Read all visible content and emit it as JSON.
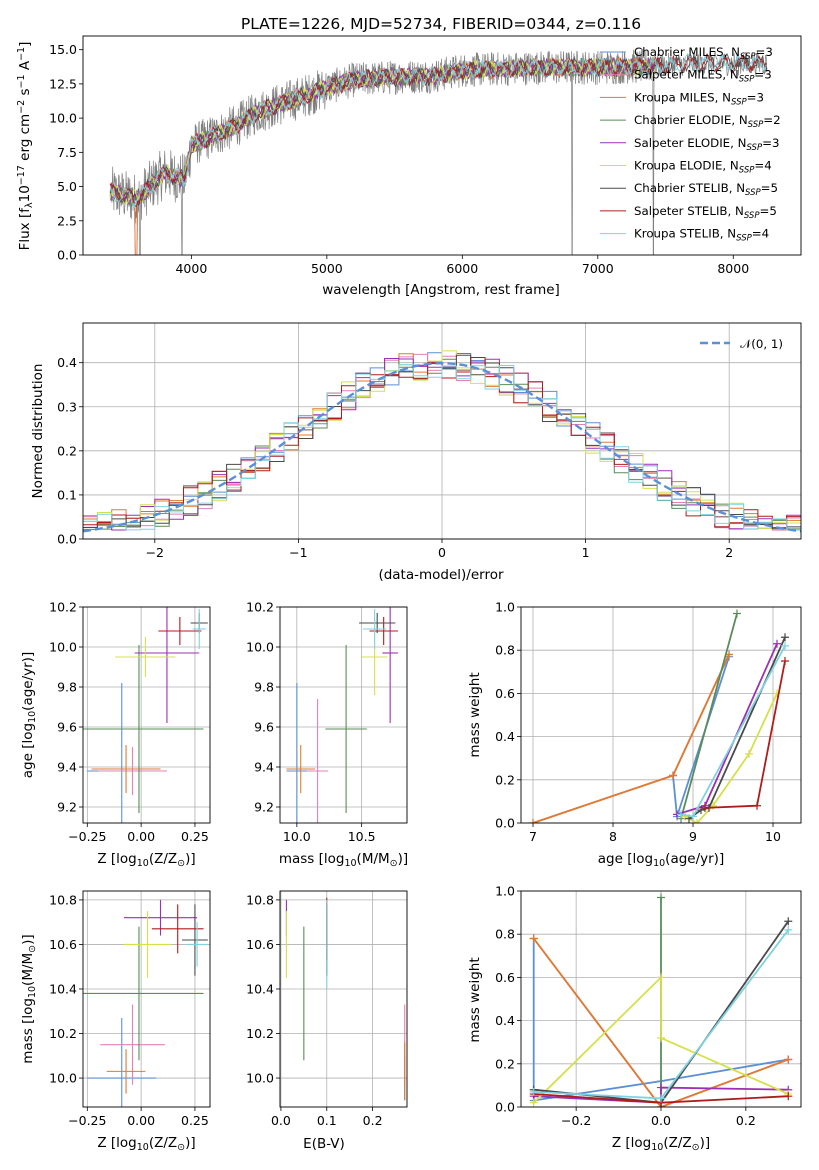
{
  "colors": {
    "data": "#7f7f7f",
    "gauss": "#5b8fd6",
    "grid": "#b0b0b0"
  },
  "models": [
    {
      "label": "Chabrier MILES, N_SSP=3",
      "base": "Chabrier MILES, N",
      "sub": "SSP",
      "tail": "=3",
      "color": "#5b8fd6"
    },
    {
      "label": "Salpeter MILES, N_SSP=3",
      "base": "Salpeter MILES, N",
      "sub": "SSP",
      "tail": "=3",
      "color": "#e67fb8"
    },
    {
      "label": "Kroupa MILES, N_SSP=3",
      "base": "Kroupa MILES, N",
      "sub": "SSP",
      "tail": "=3",
      "color": "#de7b2e"
    },
    {
      "label": "Chabrier ELODIE, N_SSP=2",
      "base": "Chabrier ELODIE, N",
      "sub": "SSP",
      "tail": "=2",
      "color": "#5a8c5a"
    },
    {
      "label": "Salpeter ELODIE, N_SSP=3",
      "base": "Salpeter ELODIE, N",
      "sub": "SSP",
      "tail": "=3",
      "color": "#9b30b5"
    },
    {
      "label": "Kroupa ELODIE, N_SSP=4",
      "base": "Kroupa ELODIE, N",
      "sub": "SSP",
      "tail": "=4",
      "color": "#d6e04a"
    },
    {
      "label": "Chabrier STELIB, N_SSP=5",
      "base": "Chabrier STELIB, N",
      "sub": "SSP",
      "tail": "=5",
      "color": "#4a4a4a"
    },
    {
      "label": "Salpeter STELIB, N_SSP=5",
      "base": "Salpeter STELIB, N",
      "sub": "SSP",
      "tail": "=5",
      "color": "#b01c1c"
    },
    {
      "label": "Kroupa STELIB, N_SSP=4",
      "base": "Kroupa STELIB, N",
      "sub": "SSP",
      "tail": "=4",
      "color": "#7fd3e0"
    }
  ],
  "chart_data": [
    {
      "id": "spectrum",
      "type": "line",
      "title": "PLATE=1226, MJD=52734, FIBERID=0344, z=0.116",
      "xlabel": "wavelength [Angstrom, rest frame]",
      "ylabel_parts": [
        "Flux [f",
        "λ",
        "10",
        "−17",
        " erg cm",
        "−2",
        " s",
        "−1",
        " A",
        "−1",
        "]"
      ],
      "xlim": [
        3200,
        8500
      ],
      "ylim": [
        0,
        16
      ],
      "xticks": [
        4000,
        5000,
        6000,
        7000,
        8000
      ],
      "yticks": [
        0.0,
        2.5,
        5.0,
        7.5,
        10.0,
        12.5,
        15.0
      ],
      "ytick_labels": [
        "0.0",
        "2.5",
        "5.0",
        "7.5",
        "10.0",
        "12.5",
        "15.0"
      ],
      "grid": false,
      "legend": "top-right",
      "continuum": [
        [
          3400,
          4.6
        ],
        [
          3600,
          4.1
        ],
        [
          3800,
          6.0
        ],
        [
          3950,
          5.5
        ],
        [
          4000,
          8.0
        ],
        [
          4300,
          9.3
        ],
        [
          4500,
          10.5
        ],
        [
          4800,
          11.5
        ],
        [
          5000,
          12.2
        ],
        [
          5200,
          12.8
        ],
        [
          5500,
          13.0
        ],
        [
          5800,
          13.1
        ],
        [
          6000,
          13.5
        ],
        [
          6300,
          13.6
        ],
        [
          6600,
          13.7
        ],
        [
          7000,
          13.7
        ],
        [
          7400,
          13.8
        ],
        [
          7700,
          14.0
        ],
        [
          8000,
          14.0
        ],
        [
          8250,
          14.0
        ]
      ],
      "data_range": [
        3410,
        7420
      ],
      "dips": [
        {
          "x": 3620,
          "to": 0
        },
        {
          "x": 3930,
          "to": 0
        },
        {
          "x": 6810,
          "to": 0
        },
        {
          "x": 7410,
          "to": 0
        }
      ]
    },
    {
      "id": "residuals",
      "type": "histogram",
      "xlabel": "(data-model)/error",
      "ylabel": "Normed distribution",
      "xlim": [
        -2.5,
        2.5
      ],
      "ylim": [
        0,
        0.49
      ],
      "xticks": [
        -2,
        -1,
        0,
        1,
        2
      ],
      "xtick_labels": [
        "−2",
        "−1",
        "0",
        "1",
        "2"
      ],
      "yticks": [
        0.0,
        0.1,
        0.2,
        0.3,
        0.4
      ],
      "ytick_labels": [
        "0.0",
        "0.1",
        "0.2",
        "0.3",
        "0.4"
      ],
      "bin_width": 0.1,
      "grid": true,
      "legend": "top-right",
      "gauss_label": "𝒩(0, 1)"
    },
    {
      "id": "age-vs-Z",
      "type": "scatter",
      "xlabel_parts": [
        "Z [log",
        "10",
        "(Z/Z",
        "⊙",
        ")]"
      ],
      "ylabel_parts": [
        "age  [log",
        "10",
        "(age/yr)]"
      ],
      "xlim": [
        -0.27,
        0.32
      ],
      "ylim": [
        9.12,
        10.2
      ],
      "xticks": [
        -0.25,
        0.0,
        0.25
      ],
      "xtick_labels": [
        "−0.25",
        "0.00",
        "0.25"
      ],
      "yticks": [
        9.2,
        9.4,
        9.6,
        9.8,
        10.0,
        10.2
      ],
      "ytick_labels": [
        "9.2",
        "9.4",
        "9.6",
        "9.8",
        "10.0",
        "10.2"
      ],
      "grid": true,
      "points": [
        {
          "m": 0,
          "x": -0.09,
          "xe": 0.16,
          "y": 9.38,
          "ye": 0.44
        },
        {
          "m": 1,
          "x": -0.04,
          "xe": 0.16,
          "y": 9.38,
          "ye": 0.12
        },
        {
          "m": 2,
          "x": -0.07,
          "xe": 0.16,
          "y": 9.39,
          "ye": 0.12
        },
        {
          "m": 3,
          "x": -0.01,
          "xe": 0.3,
          "y": 9.59,
          "ye": 0.42
        },
        {
          "m": 4,
          "x": 0.12,
          "xe": 0.15,
          "y": 9.97,
          "ye": 0.35
        },
        {
          "m": 5,
          "x": 0.02,
          "xe": 0.14,
          "y": 9.95,
          "ye": 0.1
        },
        {
          "m": 6,
          "x": 0.27,
          "xe": 0.04,
          "y": 10.12,
          "ye": 0.05
        },
        {
          "m": 7,
          "x": 0.18,
          "xe": 0.1,
          "y": 10.08,
          "ye": 0.07
        },
        {
          "m": 8,
          "x": 0.27,
          "xe": 0.03,
          "y": 10.09,
          "ye": 0.1
        }
      ]
    },
    {
      "id": "age-vs-mass",
      "type": "scatter",
      "xlabel_parts": [
        "mass [log",
        "10",
        "(M/M",
        "⊙",
        ")]"
      ],
      "ylabel": "",
      "xlim": [
        9.87,
        10.85
      ],
      "ylim": [
        9.12,
        10.2
      ],
      "xticks": [
        10.0,
        10.5
      ],
      "xtick_labels": [
        "10.0",
        "10.5"
      ],
      "yticks": [
        9.2,
        9.4,
        9.6,
        9.8,
        10.0,
        10.2
      ],
      "ytick_labels": [
        "9.2",
        "9.4",
        "9.6",
        "9.8",
        "10.0",
        "10.2"
      ],
      "grid": true,
      "points": [
        {
          "m": 0,
          "x": 10.0,
          "xe": 0.08,
          "y": 9.38,
          "ye": 0.44
        },
        {
          "m": 1,
          "x": 10.16,
          "xe": 0.08,
          "y": 9.38,
          "ye": 0.36
        },
        {
          "m": 2,
          "x": 10.03,
          "xe": 0.11,
          "y": 9.39,
          "ye": 0.12
        },
        {
          "m": 3,
          "x": 10.38,
          "xe": 0.16,
          "y": 9.59,
          "ye": 0.42
        },
        {
          "m": 4,
          "x": 10.72,
          "xe": 0.06,
          "y": 9.97,
          "ye": 0.35
        },
        {
          "m": 5,
          "x": 10.6,
          "xe": 0.1,
          "y": 9.95,
          "ye": 0.19
        },
        {
          "m": 6,
          "x": 10.62,
          "xe": 0.14,
          "y": 10.12,
          "ye": 0.05
        },
        {
          "m": 7,
          "x": 10.67,
          "xe": 0.11,
          "y": 10.08,
          "ye": 0.07
        },
        {
          "m": 8,
          "x": 10.6,
          "xe": 0.09,
          "y": 10.09,
          "ye": 0.1
        }
      ]
    },
    {
      "id": "massweight-vs-age",
      "type": "line",
      "xlabel_parts": [
        "age  [log",
        "10",
        "(age/yr)]"
      ],
      "ylabel": "mass weight",
      "xlim": [
        6.85,
        10.35
      ],
      "ylim": [
        0,
        1
      ],
      "xticks": [
        7,
        8,
        9,
        10
      ],
      "xtick_labels": [
        "7",
        "8",
        "9",
        "10"
      ],
      "yticks": [
        0.0,
        0.2,
        0.4,
        0.6,
        0.8,
        1.0
      ],
      "ytick_labels": [
        "0.0",
        "0.2",
        "0.4",
        "0.6",
        "0.8",
        "1.0"
      ],
      "grid": true,
      "series": [
        {
          "m": 0,
          "x": [
            8.75,
            8.8,
            9.45
          ],
          "y": [
            0.22,
            0.03,
            0.77
          ]
        },
        {
          "m": 1,
          "x": [
            7.0,
            8.75,
            9.45
          ],
          "y": [
            0.0,
            0.22,
            0.78
          ]
        },
        {
          "m": 2,
          "x": [
            7.0,
            8.75,
            9.45
          ],
          "y": [
            0.0,
            0.22,
            0.78
          ]
        },
        {
          "m": 3,
          "x": [
            8.85,
            9.55
          ],
          "y": [
            0.02,
            0.97
          ]
        },
        {
          "m": 4,
          "x": [
            8.8,
            9.15,
            10.05
          ],
          "y": [
            0.04,
            0.08,
            0.83
          ]
        },
        {
          "m": 5,
          "x": [
            8.9,
            9.05,
            9.25,
            9.7,
            10.05
          ],
          "y": [
            0.03,
            0.0,
            0.08,
            0.32,
            0.6
          ]
        },
        {
          "m": 6,
          "x": [
            8.95,
            9.1,
            9.2,
            10.15
          ],
          "y": [
            0.02,
            0.06,
            0.07,
            0.86
          ]
        },
        {
          "m": 7,
          "x": [
            9.15,
            9.8,
            10.15
          ],
          "y": [
            0.07,
            0.08,
            0.75
          ]
        },
        {
          "m": 8,
          "x": [
            8.85,
            9.0,
            10.15
          ],
          "y": [
            0.04,
            0.03,
            0.82
          ]
        }
      ]
    },
    {
      "id": "mass-vs-Z",
      "type": "scatter",
      "xlabel_parts": [
        "Z [log",
        "10",
        "(Z/Z",
        "⊙",
        ")]"
      ],
      "ylabel_parts": [
        "mass [log",
        "10",
        "(M/M",
        "⊙",
        ")]"
      ],
      "xlim": [
        -0.27,
        0.32
      ],
      "ylim": [
        9.87,
        10.84
      ],
      "xticks": [
        -0.25,
        0.0,
        0.25
      ],
      "xtick_labels": [
        "−0.25",
        "0.00",
        "0.25"
      ],
      "yticks": [
        10.0,
        10.2,
        10.4,
        10.6,
        10.8
      ],
      "ytick_labels": [
        "10.0",
        "10.2",
        "10.4",
        "10.6",
        "10.8"
      ],
      "grid": true,
      "points": [
        {
          "m": 0,
          "x": -0.09,
          "xe": 0.16,
          "y": 10.0,
          "ye": 0.27
        },
        {
          "m": 1,
          "x": -0.04,
          "xe": 0.15,
          "y": 10.15,
          "ye": 0.18
        },
        {
          "m": 2,
          "x": -0.07,
          "xe": 0.09,
          "y": 10.03,
          "ye": 0.1
        },
        {
          "m": 3,
          "x": -0.01,
          "xe": 0.3,
          "y": 10.38,
          "ye": 0.3
        },
        {
          "m": 4,
          "x": 0.09,
          "xe": 0.17,
          "y": 10.72,
          "ye": 0.08
        },
        {
          "m": 5,
          "x": 0.03,
          "xe": 0.11,
          "y": 10.6,
          "ye": 0.15
        },
        {
          "m": 6,
          "x": 0.25,
          "xe": 0.06,
          "y": 10.62,
          "ye": 0.16
        },
        {
          "m": 7,
          "x": 0.17,
          "xe": 0.12,
          "y": 10.67,
          "ye": 0.11
        },
        {
          "m": 8,
          "x": 0.26,
          "xe": 0.05,
          "y": 10.6,
          "ye": 0.1
        }
      ]
    },
    {
      "id": "mass-vs-EBV",
      "type": "scatter",
      "xlabel": "E(B-V)",
      "ylabel": "",
      "xlim": [
        -0.002,
        0.275
      ],
      "ylim": [
        9.87,
        10.84
      ],
      "xticks": [
        0.0,
        0.1,
        0.2
      ],
      "xtick_labels": [
        "0.0",
        "0.1",
        "0.2"
      ],
      "yticks": [
        10.0,
        10.2,
        10.4,
        10.6,
        10.8
      ],
      "ytick_labels": [
        "10.0",
        "10.2",
        "10.4",
        "10.6",
        "10.8"
      ],
      "grid": true,
      "points": [
        {
          "m": 0,
          "x": 0.27,
          "xe": 0,
          "y": 10.0,
          "ye": 0.1
        },
        {
          "m": 1,
          "x": 0.27,
          "xe": 0,
          "y": 10.15,
          "ye": 0.18
        },
        {
          "m": 2,
          "x": 0.27,
          "xe": 0,
          "y": 10.03,
          "ye": 0.13
        },
        {
          "m": 3,
          "x": 0.05,
          "xe": 0,
          "y": 10.38,
          "ye": 0.3
        },
        {
          "m": 4,
          "x": 0.012,
          "xe": 0,
          "y": 10.72,
          "ye": 0.08
        },
        {
          "m": 5,
          "x": 0.012,
          "xe": 0,
          "y": 10.6,
          "ye": 0.15
        },
        {
          "m": 6,
          "x": 0.1,
          "xe": 0,
          "y": 10.62,
          "ye": 0.16
        },
        {
          "m": 7,
          "x": 0.1,
          "xe": 0,
          "y": 10.67,
          "ye": 0.14
        },
        {
          "m": 8,
          "x": 0.1,
          "xe": 0,
          "y": 10.6,
          "ye": 0.2
        }
      ]
    },
    {
      "id": "massweight-vs-Z",
      "type": "line",
      "xlabel_parts": [
        "Z [log",
        "10",
        "(Z/Z",
        "⊙",
        ")]"
      ],
      "ylabel": "mass weight",
      "xlim": [
        -0.33,
        0.33
      ],
      "ylim": [
        0,
        1
      ],
      "xticks": [
        -0.2,
        0.0,
        0.2
      ],
      "xtick_labels": [
        "−0.2",
        "0.0",
        "0.2"
      ],
      "yticks": [
        0.0,
        0.2,
        0.4,
        0.6,
        0.8,
        1.0
      ],
      "ytick_labels": [
        "0.0",
        "0.2",
        "0.4",
        "0.6",
        "0.8",
        "1.0"
      ],
      "grid": true,
      "series": [
        {
          "m": 0,
          "x": [
            -0.3,
            -0.3,
            0.0,
            0.3
          ],
          "y": [
            0.78,
            0.03,
            0.12,
            0.22
          ]
        },
        {
          "m": 1,
          "x": [
            -0.3,
            0.0,
            0.3
          ],
          "y": [
            0.78,
            0.0,
            0.22
          ]
        },
        {
          "m": 2,
          "x": [
            -0.3,
            0.0,
            0.3
          ],
          "y": [
            0.78,
            0.0,
            0.22
          ]
        },
        {
          "m": 3,
          "x": [
            0.0,
            0.0
          ],
          "y": [
            0.97,
            0.02
          ]
        },
        {
          "m": 4,
          "x": [
            -0.3,
            0.0,
            0.0,
            0.3
          ],
          "y": [
            0.05,
            0.02,
            0.09,
            0.08
          ]
        },
        {
          "m": 5,
          "x": [
            -0.3,
            0.0,
            0.0,
            0.3
          ],
          "y": [
            0.02,
            0.6,
            0.32,
            0.06
          ]
        },
        {
          "m": 6,
          "x": [
            -0.3,
            0.0,
            0.3
          ],
          "y": [
            0.08,
            0.02,
            0.86
          ]
        },
        {
          "m": 7,
          "x": [
            -0.3,
            0.0,
            0.3
          ],
          "y": [
            0.06,
            0.02,
            0.05
          ]
        },
        {
          "m": 8,
          "x": [
            -0.3,
            0.0,
            0.3
          ],
          "y": [
            0.07,
            0.04,
            0.82
          ]
        }
      ]
    }
  ]
}
